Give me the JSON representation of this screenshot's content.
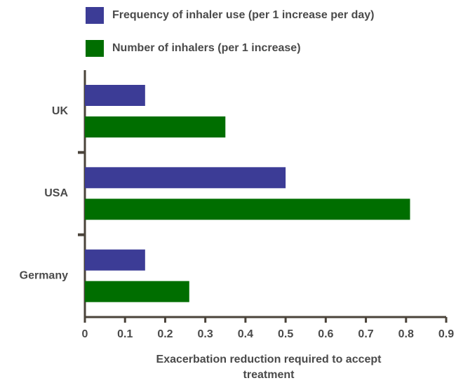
{
  "chart_data": {
    "type": "bar",
    "orientation": "horizontal",
    "categories": [
      "UK",
      "USA",
      "Germany"
    ],
    "series": [
      {
        "name": "Frequency of inhaler use (per 1 increase per day)",
        "color": "#3c3c96",
        "values": [
          0.15,
          0.5,
          0.15
        ]
      },
      {
        "name": "Number of inhalers (per 1 increase)",
        "color": "#006e00",
        "values": [
          0.35,
          0.81,
          0.26
        ]
      }
    ],
    "xlabel": "Exacerbation reduction required to accept treatment",
    "xlim": [
      0,
      0.9
    ],
    "xticks": [
      0,
      0.1,
      0.2,
      0.3,
      0.4,
      0.5,
      0.6,
      0.7,
      0.8,
      0.9
    ],
    "grid": false,
    "legend": "top"
  }
}
